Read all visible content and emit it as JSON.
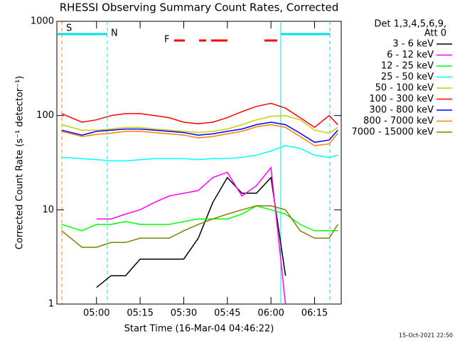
{
  "chart_data": {
    "type": "line",
    "title": "RHESSI Observing Summary Count Rates, Corrected",
    "x_label": "Start Time (16-Mar-04 04:46:22)",
    "y_label": "Corrected Count Rate (s⁻¹ detector⁻¹)",
    "timestamp": "15-Oct-2021 22:50",
    "legend_header": [
      "Det 1,3,4,5,6,9,",
      "Att 0"
    ],
    "annotations": [
      {
        "text": "S",
        "color": "#ff8000"
      },
      {
        "text": "N",
        "color": "#00e0e0"
      },
      {
        "text": "F",
        "color": "#ff0000"
      }
    ],
    "log_y": true,
    "legend": "right",
    "xlim": [
      "04:46:22",
      "06:24:10"
    ],
    "xticks": [
      "05:00",
      "05:15",
      "05:30",
      "05:45",
      "06:00",
      "06:15"
    ],
    "ylim": [
      1,
      1000
    ],
    "yticks": [
      1,
      10,
      100,
      1000
    ],
    "x": [
      "04:48",
      "04:55",
      "05:00",
      "05:05",
      "05:10",
      "05:15",
      "05:20",
      "05:25",
      "05:30",
      "05:35",
      "05:40",
      "05:45",
      "05:50",
      "05:55",
      "06:00",
      "06:05",
      "06:10",
      "06:15",
      "06:20",
      "06:23"
    ],
    "series": [
      {
        "name": "3 - 6 keV",
        "color": "#000000",
        "values": [
          null,
          null,
          1.5,
          2,
          2,
          3,
          3,
          3,
          3,
          5,
          12,
          22,
          15,
          15,
          22,
          2,
          null,
          null,
          null,
          null
        ]
      },
      {
        "name": "6 - 12 keV",
        "color": "#ff00ff",
        "values": [
          null,
          null,
          8,
          8,
          9,
          10,
          12,
          14,
          15,
          16,
          22,
          25,
          14,
          18,
          28,
          1,
          null,
          null,
          null,
          null
        ]
      },
      {
        "name": "12 - 25 keV",
        "color": "#00ff00",
        "values": [
          7,
          6,
          7,
          7,
          7.5,
          7,
          7,
          7,
          7.5,
          8,
          8,
          8,
          9,
          11,
          10,
          9,
          7,
          6,
          6,
          6
        ]
      },
      {
        "name": "25 - 50 keV",
        "color": "#00ffff",
        "values": [
          36,
          35,
          34,
          33,
          33,
          34,
          35,
          35,
          35,
          34,
          35,
          35,
          36,
          38,
          42,
          48,
          45,
          38,
          36,
          38
        ]
      },
      {
        "name": "50 - 100 keV",
        "color": "#cccc00",
        "values": [
          80,
          70,
          70,
          72,
          75,
          75,
          72,
          70,
          68,
          66,
          68,
          72,
          80,
          90,
          98,
          100,
          90,
          70,
          65,
          75
        ]
      },
      {
        "name": "100 - 300 keV",
        "color": "#ff0000",
        "values": [
          105,
          85,
          90,
          100,
          105,
          105,
          100,
          95,
          85,
          82,
          85,
          95,
          110,
          125,
          135,
          120,
          95,
          75,
          100,
          80
        ]
      },
      {
        "name": "300 - 800 keV",
        "color": "#0000ff",
        "values": [
          70,
          62,
          68,
          70,
          72,
          72,
          70,
          68,
          66,
          62,
          64,
          68,
          72,
          80,
          85,
          80,
          65,
          52,
          55,
          70
        ]
      },
      {
        "name": "800 - 7000 keV",
        "color": "#ff8000",
        "values": [
          68,
          60,
          63,
          65,
          68,
          68,
          66,
          64,
          62,
          58,
          60,
          64,
          68,
          76,
          80,
          75,
          60,
          48,
          50,
          65
        ]
      },
      {
        "name": "7000 - 15000 keV",
        "color": "#808000",
        "values": [
          6,
          4,
          4,
          4.5,
          4.5,
          5,
          5,
          5,
          6,
          7,
          8,
          9,
          10,
          11,
          11,
          10,
          6,
          5,
          5,
          7
        ]
      }
    ]
  }
}
